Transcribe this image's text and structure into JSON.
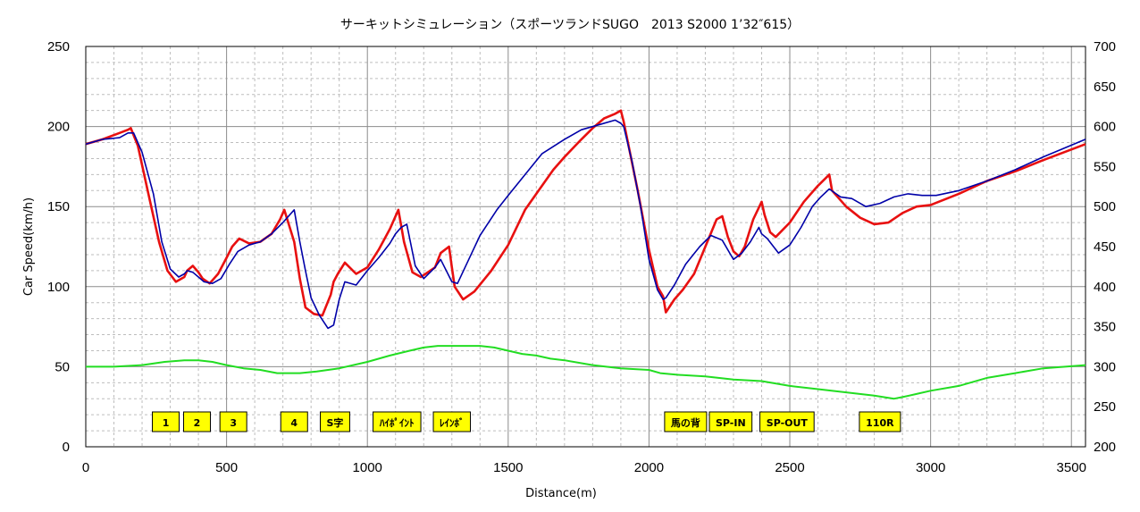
{
  "chart_data": {
    "type": "line",
    "title": "サーキットシミュレーション（スポーツランドSUGO　2013 S2000 1’32″615）",
    "xlabel": "Distance(m)",
    "ylabel": "Car Speed(km/h)",
    "xlim": [
      0,
      3550
    ],
    "ylim": [
      0,
      250
    ],
    "y2lim": [
      200,
      700
    ],
    "xticks": [
      0,
      500,
      1000,
      1500,
      2000,
      2500,
      3000,
      3500
    ],
    "yticks": [
      0,
      50,
      100,
      150,
      200,
      250
    ],
    "y2ticks": [
      200,
      250,
      300,
      350,
      400,
      450,
      500,
      550,
      600,
      650,
      700
    ],
    "grid": true,
    "colors": {
      "red": "#e81010",
      "blue": "#0000a8",
      "green": "#22dd22",
      "marker_fill": "#ffff00"
    },
    "series": [
      {
        "color": "#e81010",
        "x": [
          0,
          60,
          120,
          150,
          160,
          185,
          220,
          260,
          290,
          320,
          350,
          360,
          380,
          400,
          415,
          440,
          470,
          500,
          520,
          545,
          580,
          620,
          660,
          690,
          705,
          740,
          760,
          780,
          810,
          840,
          870,
          880,
          895,
          920,
          960,
          1000,
          1040,
          1080,
          1100,
          1110,
          1130,
          1160,
          1190,
          1240,
          1260,
          1290,
          1300,
          1310,
          1340,
          1380,
          1440,
          1500,
          1560,
          1600,
          1660,
          1700,
          1760,
          1800,
          1840,
          1880,
          1900,
          1910,
          1960,
          2000,
          2030,
          2050,
          2060,
          2090,
          2120,
          2160,
          2200,
          2240,
          2260,
          2280,
          2300,
          2320,
          2340,
          2370,
          2400,
          2410,
          2430,
          2450,
          2500,
          2550,
          2600,
          2640,
          2650,
          2700,
          2750,
          2800,
          2850,
          2900,
          2950,
          3000,
          3100,
          3200,
          3300,
          3400,
          3550
        ],
        "y": [
          189,
          192,
          196,
          198,
          199,
          188,
          160,
          128,
          110,
          103,
          106,
          110,
          113,
          109,
          105,
          102,
          108,
          118,
          125,
          130,
          127,
          128,
          133,
          142,
          148,
          128,
          105,
          87,
          83,
          82,
          95,
          103,
          108,
          115,
          108,
          112,
          123,
          136,
          144,
          148,
          128,
          109,
          106,
          112,
          121,
          125,
          112,
          100,
          92,
          97,
          110,
          126,
          148,
          158,
          173,
          181,
          192,
          199,
          205,
          208,
          210,
          203,
          160,
          123,
          100,
          94,
          84,
          92,
          98,
          108,
          125,
          142,
          144,
          131,
          122,
          119,
          125,
          142,
          153,
          145,
          134,
          131,
          140,
          153,
          163,
          170,
          160,
          150,
          143,
          139,
          140,
          146,
          150,
          151,
          158,
          166,
          172,
          179,
          189
        ]
      },
      {
        "color": "#0000a8",
        "x": [
          0,
          60,
          120,
          150,
          170,
          200,
          240,
          270,
          300,
          330,
          350,
          360,
          380,
          400,
          420,
          450,
          480,
          510,
          540,
          580,
          620,
          660,
          700,
          740,
          760,
          780,
          800,
          830,
          860,
          880,
          900,
          920,
          960,
          1000,
          1040,
          1080,
          1100,
          1120,
          1140,
          1170,
          1200,
          1240,
          1260,
          1300,
          1320,
          1360,
          1400,
          1460,
          1500,
          1560,
          1620,
          1700,
          1760,
          1820,
          1880,
          1900,
          1910,
          1940,
          1970,
          2000,
          2030,
          2050,
          2060,
          2090,
          2130,
          2180,
          2220,
          2260,
          2290,
          2300,
          2330,
          2360,
          2390,
          2400,
          2420,
          2460,
          2500,
          2540,
          2580,
          2610,
          2640,
          2680,
          2720,
          2770,
          2820,
          2870,
          2920,
          2970,
          3020,
          3100,
          3200,
          3300,
          3400,
          3550
        ],
        "y": [
          189,
          192,
          193,
          196,
          196,
          184,
          158,
          128,
          111,
          106,
          108,
          110,
          109,
          106,
          103,
          102,
          105,
          114,
          122,
          126,
          128,
          133,
          140,
          148,
          128,
          110,
          93,
          82,
          74,
          76,
          92,
          103,
          101,
          110,
          118,
          127,
          133,
          137,
          139,
          113,
          105,
          112,
          117,
          103,
          102,
          117,
          132,
          148,
          157,
          170,
          183,
          192,
          198,
          201,
          204,
          202,
          200,
          178,
          150,
          117,
          98,
          92,
          93,
          101,
          114,
          125,
          132,
          129,
          120,
          117,
          121,
          128,
          137,
          133,
          130,
          121,
          126,
          137,
          150,
          156,
          161,
          156,
          155,
          150,
          152,
          156,
          158,
          157,
          157,
          160,
          166,
          173,
          181,
          192
        ]
      },
      {
        "color": "#22dd22",
        "x": [
          0,
          100,
          200,
          280,
          350,
          400,
          450,
          500,
          560,
          620,
          680,
          760,
          820,
          900,
          1000,
          1080,
          1150,
          1200,
          1250,
          1300,
          1350,
          1400,
          1450,
          1500,
          1550,
          1600,
          1650,
          1700,
          1800,
          1900,
          2000,
          2040,
          2100,
          2200,
          2300,
          2400,
          2500,
          2600,
          2700,
          2800,
          2870,
          2900,
          2950,
          3000,
          3100,
          3200,
          3300,
          3400,
          3550
        ],
        "y": [
          50,
          50,
          51,
          53,
          54,
          54,
          53,
          51,
          49,
          48,
          46,
          46,
          47,
          49,
          53,
          57,
          60,
          62,
          63,
          63,
          63,
          63,
          62,
          60,
          58,
          57,
          55,
          54,
          51,
          49,
          48,
          46,
          45,
          44,
          42,
          41,
          38,
          36,
          34,
          32,
          30,
          31,
          33,
          35,
          38,
          43,
          46,
          49,
          51
        ]
      }
    ],
    "markers": [
      {
        "label": "1",
        "x": 284
      },
      {
        "label": "2",
        "x": 395
      },
      {
        "label": "3",
        "x": 524
      },
      {
        "label": "4",
        "x": 740
      },
      {
        "label": "S字",
        "x": 885
      },
      {
        "label": "ﾊｲﾎﾟｲﾝﾄ",
        "x": 1105
      },
      {
        "label": "ﾚｲﾝﾎﾞ",
        "x": 1300
      },
      {
        "label": "馬の背",
        "x": 2130
      },
      {
        "label": "SP-IN",
        "x": 2290
      },
      {
        "label": "SP-OUT",
        "x": 2490
      },
      {
        "label": "110R",
        "x": 2820
      }
    ]
  }
}
